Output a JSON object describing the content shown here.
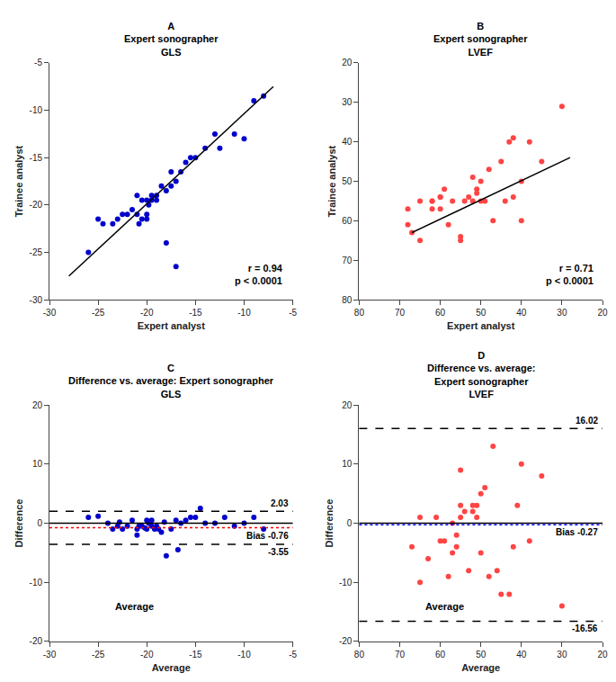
{
  "chart_data": [
    {
      "type": "scatter",
      "title": "A\nExpert sonographer\nGLS",
      "xlabel": "Expert analyst",
      "ylabel": "Trainee analyst",
      "series": [
        {
          "type": "scatter",
          "color": "#0000CC",
          "marker": "circle",
          "x": [
            -26,
            -25,
            -24.5,
            -23.5,
            -23,
            -22.5,
            -22,
            -21.5,
            -21,
            -21,
            -20.8,
            -20.5,
            -20.5,
            -20,
            -20,
            -20,
            -19.8,
            -19.5,
            -19.5,
            -19,
            -19,
            -18.5,
            -18,
            -18,
            -17.5,
            -17.5,
            -17,
            -17,
            -16.5,
            -16,
            -15.5,
            -15,
            -14,
            -13,
            -12.5,
            -11,
            -10,
            -9,
            -8
          ],
          "values": [
            -25,
            -21.5,
            -22,
            -22,
            -21.5,
            -21,
            -21,
            -20.5,
            -21,
            -19,
            -22,
            -19.5,
            -21.5,
            -19.5,
            -21,
            -21.5,
            -20,
            -19,
            -19.5,
            -19,
            -19.5,
            -18,
            -18.5,
            -24,
            -18,
            -16.5,
            -17.5,
            -26.5,
            -16.5,
            -15.5,
            -15,
            -15,
            -14,
            -12.5,
            -14,
            -12.5,
            -13,
            -9,
            -8.5
          ]
        },
        {
          "type": "line",
          "color": "#000000",
          "line_style": "solid",
          "x": [
            -28,
            -7
          ],
          "values": [
            -27.5,
            -7.5
          ]
        }
      ],
      "xlim": [
        -30,
        -5
      ],
      "ylim": [
        -30,
        -5
      ],
      "xticks": [
        -30,
        -25,
        -20,
        -15,
        -10,
        -5
      ],
      "yticks": [
        -30,
        -25,
        -20,
        -15,
        -10,
        -5
      ],
      "annotations": [
        "r = 0.94\np < 0.0001"
      ],
      "grid": false
    },
    {
      "type": "scatter",
      "title": "B\nExpert sonographer\nLVEF",
      "xlabel": "Expert analyst",
      "ylabel": "Trainee analyst",
      "series": [
        {
          "type": "scatter",
          "color": "#FF4444",
          "marker": "circle",
          "x": [
            65,
            67,
            68,
            68,
            65,
            62,
            62,
            62,
            60,
            60,
            60,
            59,
            58,
            57,
            55,
            55,
            54,
            53,
            52,
            52,
            51,
            51,
            50,
            50,
            49,
            48,
            47,
            45,
            44,
            43,
            42,
            42,
            40,
            40,
            38,
            35,
            30
          ],
          "values": [
            65,
            63,
            61,
            57,
            55,
            57,
            55,
            55,
            57,
            54,
            54,
            52,
            61,
            55,
            64,
            65,
            55,
            54,
            55,
            49,
            52,
            53,
            55,
            50,
            55,
            47,
            60,
            45,
            55,
            40,
            39,
            54,
            60,
            50,
            40,
            45,
            31
          ]
        },
        {
          "type": "line",
          "color": "#000000",
          "line_style": "solid",
          "x": [
            67,
            28
          ],
          "values": [
            63,
            44
          ]
        }
      ],
      "xlim": [
        80,
        20
      ],
      "ylim": [
        80,
        20
      ],
      "xticks": [
        80,
        70,
        60,
        50,
        40,
        30,
        20
      ],
      "yticks": [
        80,
        70,
        60,
        50,
        40,
        30,
        20
      ],
      "annotations": [
        "r = 0.71\np < 0.0001"
      ],
      "grid": false
    },
    {
      "type": "scatter",
      "title": "C\nDifference vs. average: Expert sonographer\nGLS",
      "xlabel": "Average",
      "ylabel": "Difference",
      "series": [
        {
          "type": "scatter",
          "color": "#0000CC",
          "marker": "circle",
          "x": [
            -26,
            -25,
            -24,
            -23.5,
            -23,
            -22.8,
            -22.5,
            -22,
            -21.5,
            -21,
            -21,
            -20.8,
            -20.5,
            -20.2,
            -20,
            -20,
            -19.8,
            -19.5,
            -19.5,
            -19.2,
            -19,
            -18.8,
            -18.5,
            -18.2,
            -18,
            -17.5,
            -17,
            -16.8,
            -16.5,
            -16,
            -15.5,
            -15,
            -14.5,
            -14,
            -13,
            -12,
            -11,
            -10,
            -9,
            -8
          ],
          "values": [
            1.0,
            1.2,
            0.0,
            -1.0,
            -0.5,
            0.2,
            -1.0,
            -0.5,
            0.5,
            -2.0,
            -1.0,
            -0.5,
            -0.5,
            -0.8,
            -1.0,
            0.5,
            0.0,
            0.5,
            -0.5,
            -1.0,
            -0.5,
            -1.0,
            -1.5,
            0.2,
            -5.5,
            -1.0,
            0.5,
            -4.5,
            0.0,
            0.5,
            1.0,
            1.0,
            2.5,
            0.0,
            0.0,
            1.0,
            -0.5,
            0.0,
            1.0,
            -1.0
          ]
        }
      ],
      "hlines": [
        {
          "value": 0,
          "color": "#000000",
          "line_style": "solid"
        },
        {
          "value": -0.76,
          "color": "#FF0000",
          "line_style": "dotted",
          "label": "Bias -0.76"
        },
        {
          "value": 2.03,
          "color": "#000000",
          "line_style": "dashed",
          "label": "2.03"
        },
        {
          "value": -3.55,
          "color": "#000000",
          "line_style": "dashed",
          "label": "-3.55"
        }
      ],
      "xlim": [
        -30,
        -5
      ],
      "ylim": [
        -20,
        20
      ],
      "xticks": [
        -30,
        -25,
        -20,
        -15,
        -10,
        -5
      ],
      "yticks": [
        -20,
        -10,
        0,
        10,
        20
      ],
      "annotations": [
        "Average"
      ],
      "grid": false
    },
    {
      "type": "scatter",
      "title": "D\nDifference vs. average:\nExpert sonographer\nLVEF",
      "xlabel": "Average",
      "ylabel": "Difference",
      "series": [
        {
          "type": "scatter",
          "color": "#FF4444",
          "marker": "circle",
          "x": [
            65,
            67,
            65,
            63,
            61,
            60,
            59,
            58,
            57,
            57,
            56,
            56,
            55,
            55,
            55,
            54,
            53,
            52,
            52,
            51,
            51,
            50,
            50,
            49,
            48,
            47,
            46,
            45,
            43,
            42,
            41,
            40,
            38,
            35,
            30
          ],
          "values": [
            1,
            -4,
            -10,
            -6,
            1,
            -3,
            -3,
            -9,
            0,
            -5,
            -2,
            -4,
            9,
            1,
            3,
            2,
            -8,
            3,
            2,
            3,
            1,
            5,
            -5,
            6,
            -9,
            13,
            -8,
            -12,
            -12,
            -4,
            3,
            10,
            -3,
            8,
            -14
          ]
        }
      ],
      "hlines": [
        {
          "value": 0,
          "color": "#000000",
          "line_style": "solid"
        },
        {
          "value": -0.27,
          "color": "#0000FF",
          "line_style": "dotted",
          "label": "Bias -0.27"
        },
        {
          "value": 16.02,
          "color": "#000000",
          "line_style": "dashed",
          "label": "16.02"
        },
        {
          "value": -16.56,
          "color": "#000000",
          "line_style": "dashed",
          "label": "-16.56"
        }
      ],
      "xlim": [
        80,
        20
      ],
      "ylim": [
        -20,
        20
      ],
      "xticks": [
        80,
        70,
        60,
        50,
        40,
        30,
        20
      ],
      "yticks": [
        -20,
        -10,
        0,
        10,
        20
      ],
      "annotations": [
        "Average"
      ],
      "grid": false
    }
  ]
}
